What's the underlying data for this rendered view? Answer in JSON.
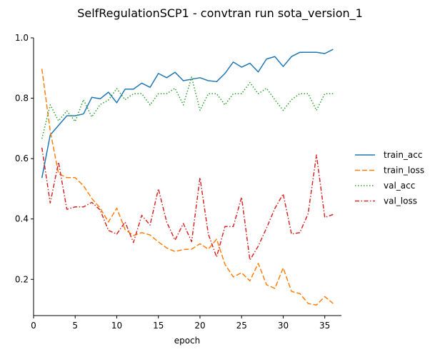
{
  "chart_data": {
    "type": "line",
    "title": "SelfRegulationSCP1 - convtran run sota_version_1",
    "xlabel": "epoch",
    "ylabel": "",
    "xlim": [
      0,
      37
    ],
    "ylim": [
      0.08,
      1.0
    ],
    "xticks": [
      "0",
      "5",
      "10",
      "15",
      "20",
      "25",
      "30",
      "35"
    ],
    "yticks": [
      "0.2",
      "0.4",
      "0.6",
      "0.8",
      "1.0"
    ],
    "grid": false,
    "legend_position": "right",
    "x": [
      1,
      2,
      3,
      4,
      5,
      6,
      7,
      8,
      9,
      10,
      11,
      12,
      13,
      14,
      15,
      16,
      17,
      18,
      19,
      20,
      21,
      22,
      23,
      24,
      25,
      26,
      27,
      28,
      29,
      30,
      31,
      32,
      33,
      34,
      35,
      36
    ],
    "series": [
      {
        "name": "train_acc",
        "color": "#1f77b4",
        "style": "solid",
        "values": [
          0.536,
          0.678,
          0.71,
          0.742,
          0.742,
          0.748,
          0.803,
          0.798,
          0.82,
          0.785,
          0.83,
          0.83,
          0.85,
          0.836,
          0.882,
          0.868,
          0.886,
          0.858,
          0.863,
          0.868,
          0.858,
          0.855,
          0.882,
          0.92,
          0.903,
          0.916,
          0.887,
          0.93,
          0.938,
          0.905,
          0.938,
          0.952,
          0.952,
          0.952,
          0.948,
          0.962
        ]
      },
      {
        "name": "train_loss",
        "color": "#ff7f0e",
        "style": "dashed",
        "values": [
          0.897,
          0.692,
          0.55,
          0.537,
          0.537,
          0.51,
          0.468,
          0.436,
          0.39,
          0.436,
          0.365,
          0.345,
          0.355,
          0.347,
          0.324,
          0.304,
          0.292,
          0.299,
          0.3,
          0.318,
          0.3,
          0.333,
          0.25,
          0.208,
          0.222,
          0.195,
          0.253,
          0.182,
          0.17,
          0.238,
          0.16,
          0.153,
          0.12,
          0.115,
          0.143,
          0.12
        ]
      },
      {
        "name": "val_acc",
        "color": "#2ca02c",
        "style": "dotted",
        "values": [
          0.666,
          0.778,
          0.725,
          0.758,
          0.723,
          0.795,
          0.738,
          0.779,
          0.794,
          0.832,
          0.795,
          0.815,
          0.815,
          0.778,
          0.815,
          0.815,
          0.833,
          0.778,
          0.87,
          0.76,
          0.815,
          0.815,
          0.778,
          0.815,
          0.815,
          0.852,
          0.815,
          0.833,
          0.795,
          0.76,
          0.795,
          0.815,
          0.815,
          0.76,
          0.815,
          0.815
        ]
      },
      {
        "name": "val_loss",
        "color": "#d62728",
        "style": "dashdot",
        "values": [
          0.636,
          0.453,
          0.588,
          0.432,
          0.44,
          0.44,
          0.455,
          0.43,
          0.362,
          0.35,
          0.39,
          0.322,
          0.412,
          0.38,
          0.5,
          0.39,
          0.33,
          0.385,
          0.325,
          0.537,
          0.35,
          0.274,
          0.375,
          0.375,
          0.472,
          0.264,
          0.31,
          0.37,
          0.435,
          0.483,
          0.35,
          0.355,
          0.418,
          0.612,
          0.405,
          0.415
        ]
      }
    ]
  }
}
